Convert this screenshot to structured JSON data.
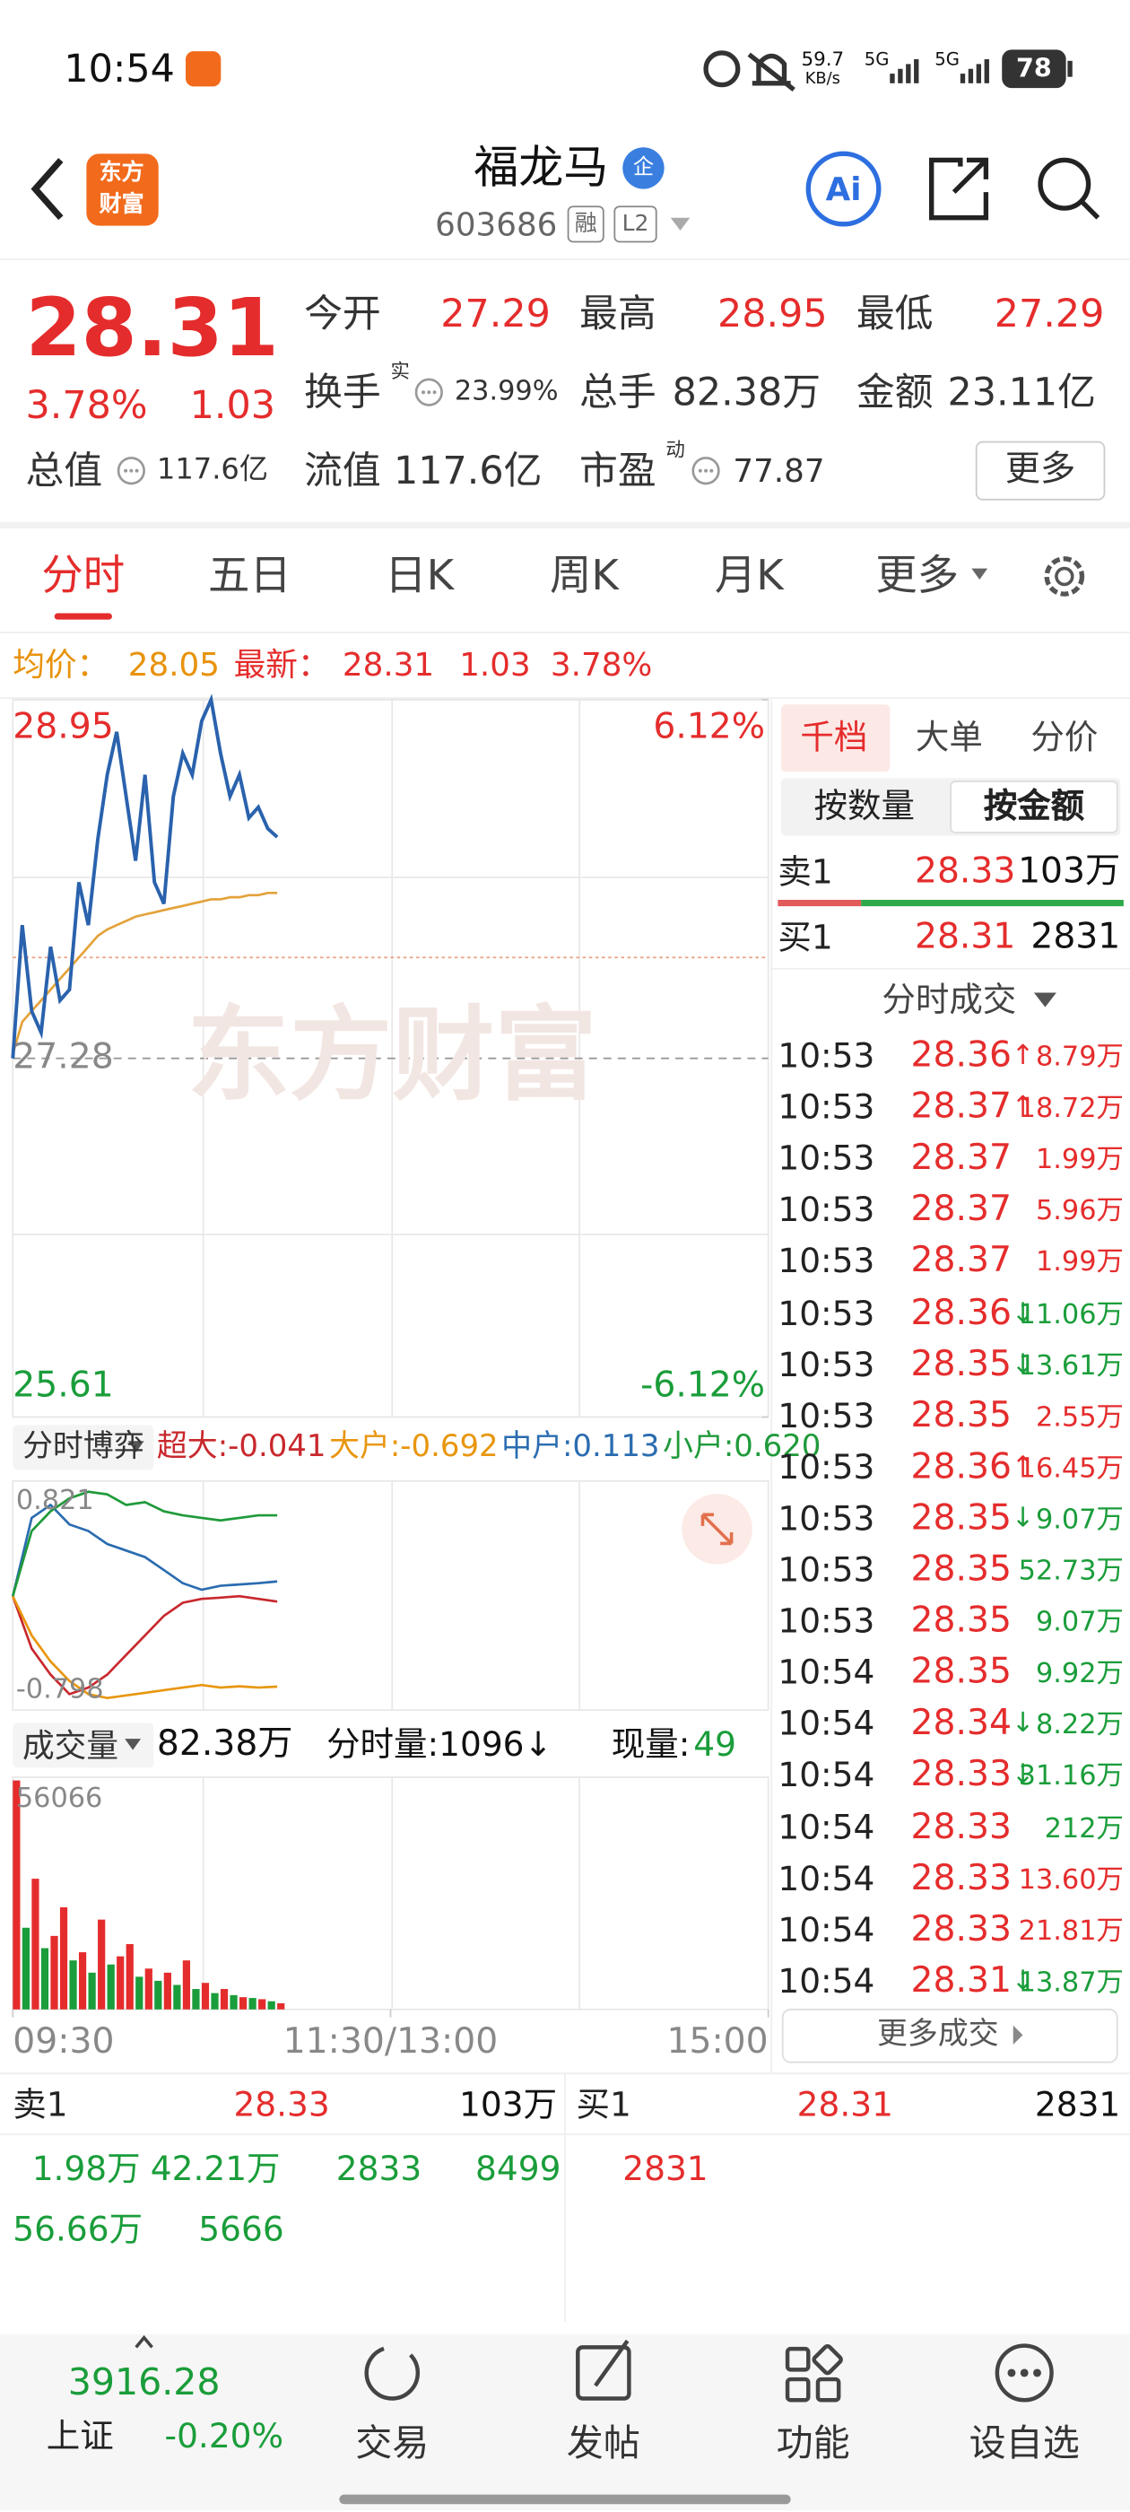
{
  "status_bar": {
    "time": "10:54",
    "speed": "59.7",
    "speed_unit": "KB/s",
    "signal_1": "5G",
    "signal_2": "5G",
    "battery": "78"
  },
  "header": {
    "logo_line_1": "东方",
    "logo_line_2": "财富",
    "name": "福龙马",
    "badge": "企",
    "code": "603686",
    "tag_1": "融",
    "tag_2": "L2",
    "ai_button": "Ai"
  },
  "quote": {
    "price": "28.31",
    "change_pct": "3.78%",
    "change": "1.03",
    "stats": [
      {
        "label": "今开",
        "value": "27.29"
      },
      {
        "label": "最高",
        "value": "28.95"
      },
      {
        "label": "最低",
        "value": "27.29"
      },
      {
        "label": "换手",
        "mark": "实",
        "value": "23.99%"
      },
      {
        "label": "总手",
        "value": "82.38万"
      },
      {
        "label": "金额",
        "value": "23.11亿"
      },
      {
        "label": "总值",
        "value": "117.6亿"
      },
      {
        "label": "流值",
        "value": "117.6亿"
      },
      {
        "label": "市盈",
        "mark": "动",
        "value": "77.87"
      }
    ],
    "more_button": "更多"
  },
  "tabs": [
    "分时",
    "五日",
    "日K",
    "周K",
    "月K",
    "更多"
  ],
  "intraday": {
    "avg_label": "均价：",
    "avg": "28.05",
    "latest_label": "最新：",
    "latest": "28.31",
    "change": "1.03",
    "change_pct": "3.78%"
  },
  "price_chart": {
    "type": "line",
    "watermark": "东方财富",
    "xlim": [
      0,
      240
    ],
    "ylim": [
      25.61,
      28.95
    ],
    "yticks": [
      25.61,
      27.28,
      28.95
    ],
    "y2lim": [
      -6.12,
      6.12
    ],
    "y2ticks": [
      {
        "value": -6.12,
        "label": "-6.12%"
      },
      {
        "value": 6.12,
        "label": "6.12%"
      }
    ],
    "xticks": [
      {
        "value": 0,
        "label": "09:30"
      },
      {
        "value": 120,
        "label": "11:30/13:00"
      },
      {
        "value": 240,
        "label": "15:00"
      }
    ],
    "x": [
      0,
      3,
      6,
      9,
      12,
      15,
      18,
      21,
      24,
      27,
      30,
      33,
      36,
      39,
      42,
      45,
      48,
      51,
      54,
      57,
      60,
      63,
      66,
      69,
      72,
      75,
      78,
      81,
      84
    ],
    "series": [
      {
        "color": "#2a62ad",
        "values": [
          27.28,
          27.9,
          27.5,
          27.4,
          27.8,
          27.55,
          27.6,
          28.1,
          27.9,
          28.3,
          28.6,
          28.8,
          28.5,
          28.2,
          28.6,
          28.1,
          28.0,
          28.5,
          28.7,
          28.6,
          28.85,
          28.95,
          28.7,
          28.5,
          28.6,
          28.4,
          28.45,
          28.35,
          28.31
        ]
      },
      {
        "color": "#e3a23a",
        "values": [
          27.3,
          27.45,
          27.5,
          27.55,
          27.6,
          27.65,
          27.7,
          27.75,
          27.8,
          27.85,
          27.88,
          27.9,
          27.92,
          27.94,
          27.95,
          27.96,
          27.97,
          27.98,
          27.99,
          28.0,
          28.01,
          28.02,
          28.02,
          28.03,
          28.03,
          28.04,
          28.04,
          28.05,
          28.05
        ]
      }
    ]
  },
  "flow_chart": {
    "type": "line",
    "title": "分时博弈",
    "ylim": [
      -0.798,
      0.821
    ],
    "xlim": [
      0,
      240
    ],
    "x": [
      0,
      6,
      12,
      18,
      24,
      30,
      36,
      42,
      48,
      54,
      60,
      66,
      72,
      78,
      84
    ],
    "series": [
      {
        "label": "超大:-0.041",
        "color": "#c8282d",
        "values": [
          0,
          -0.4,
          -0.6,
          -0.75,
          -0.7,
          -0.6,
          -0.45,
          -0.3,
          -0.15,
          -0.05,
          -0.02,
          -0.01,
          0,
          -0.02,
          -0.041
        ]
      },
      {
        "label": "大户:-0.692",
        "color": "#e8960e",
        "values": [
          0,
          -0.3,
          -0.5,
          -0.65,
          -0.75,
          -0.78,
          -0.76,
          -0.74,
          -0.72,
          -0.7,
          -0.68,
          -0.7,
          -0.69,
          -0.7,
          -0.692
        ]
      },
      {
        "label": "中户:0.113",
        "color": "#2a6cb0",
        "values": [
          0,
          0.6,
          0.7,
          0.55,
          0.5,
          0.4,
          0.35,
          0.3,
          0.2,
          0.1,
          0.05,
          0.08,
          0.09,
          0.1,
          0.113
        ]
      },
      {
        "label": "小户:0.620",
        "color": "#1f9a3a",
        "values": [
          0,
          0.5,
          0.65,
          0.75,
          0.8,
          0.78,
          0.7,
          0.72,
          0.65,
          0.62,
          0.6,
          0.58,
          0.6,
          0.62,
          0.62
        ]
      }
    ]
  },
  "volume_chart": {
    "type": "bar",
    "title": "成交量",
    "total": "82.38万",
    "minute_volume": "分时量:1096↓",
    "current_label": "现量:",
    "current": "49",
    "ylim": [
      0,
      56066
    ],
    "xlim": [
      0,
      240
    ],
    "x": [
      0,
      3,
      6,
      9,
      12,
      15,
      18,
      21,
      24,
      27,
      30,
      33,
      36,
      39,
      42,
      45,
      48,
      51,
      54,
      57,
      60,
      63,
      66,
      69,
      72,
      75,
      78,
      81,
      84
    ],
    "values": [
      56066,
      20000,
      32000,
      15000,
      18000,
      25000,
      12000,
      14000,
      9000,
      22000,
      11000,
      13000,
      16000,
      8000,
      10000,
      7000,
      9000,
      6000,
      12000,
      5000,
      6500,
      4000,
      5000,
      3500,
      3000,
      2800,
      2500,
      2000,
      1500
    ],
    "colors": [
      "#e52c2c",
      "#1a9d3a",
      "#e52c2c",
      "#1a9d3a",
      "#e52c2c",
      "#e52c2c",
      "#1a9d3a",
      "#e52c2c",
      "#1a9d3a",
      "#e52c2c",
      "#1a9d3a",
      "#e52c2c",
      "#e52c2c",
      "#1a9d3a",
      "#e52c2c",
      "#1a9d3a",
      "#e52c2c",
      "#1a9d3a",
      "#e52c2c",
      "#1a9d3a",
      "#e52c2c",
      "#1a9d3a",
      "#e52c2c",
      "#1a9d3a",
      "#e52c2c",
      "#1a9d3a",
      "#e52c2c",
      "#1a9d3a",
      "#e52c2c"
    ]
  },
  "right_panel": {
    "tabs": [
      "千档",
      "大单",
      "分价"
    ],
    "modes": [
      "按数量",
      "按金额"
    ],
    "ask": {
      "label": "卖1",
      "price": "28.33",
      "volume": "103万"
    },
    "bid": {
      "label": "买1",
      "price": "28.31",
      "volume": "2831"
    },
    "trades_title": "分时成交",
    "trades": [
      {
        "time": "10:53",
        "price": "28.36",
        "arrow": "↑",
        "volume": "8.79万",
        "color": "#e52c2c"
      },
      {
        "time": "10:53",
        "price": "28.37",
        "arrow": "↑",
        "volume": "18.72万",
        "color": "#e52c2c"
      },
      {
        "time": "10:53",
        "price": "28.37",
        "volume": "1.99万",
        "color": "#e52c2c"
      },
      {
        "time": "10:53",
        "price": "28.37",
        "volume": "5.96万",
        "color": "#e52c2c"
      },
      {
        "time": "10:53",
        "price": "28.37",
        "volume": "1.99万",
        "color": "#e52c2c"
      },
      {
        "time": "10:53",
        "price": "28.36",
        "arrow": "↓",
        "volume": "11.06万",
        "color": "#1a9d3a"
      },
      {
        "time": "10:53",
        "price": "28.35",
        "arrow": "↓",
        "volume": "13.61万",
        "color": "#1a9d3a"
      },
      {
        "time": "10:53",
        "price": "28.35",
        "volume": "2.55万",
        "color": "#e52c2c"
      },
      {
        "time": "10:53",
        "price": "28.36",
        "arrow": "↑",
        "volume": "16.45万",
        "color": "#e52c2c"
      },
      {
        "time": "10:53",
        "price": "28.35",
        "arrow": "↓",
        "volume": "9.07万",
        "color": "#1a9d3a"
      },
      {
        "time": "10:53",
        "price": "28.35",
        "volume": "52.73万",
        "color": "#1a9d3a"
      },
      {
        "time": "10:53",
        "price": "28.35",
        "volume": "9.07万",
        "color": "#1a9d3a"
      },
      {
        "time": "10:54",
        "price": "28.35",
        "volume": "9.92万",
        "color": "#1a9d3a"
      },
      {
        "time": "10:54",
        "price": "28.34",
        "arrow": "↓",
        "volume": "8.22万",
        "color": "#1a9d3a"
      },
      {
        "time": "10:54",
        "price": "28.33",
        "arrow": "↓",
        "volume": "31.16万",
        "color": "#1a9d3a"
      },
      {
        "time": "10:54",
        "price": "28.33",
        "volume": "212万",
        "color": "#1a9d3a"
      },
      {
        "time": "10:54",
        "price": "28.33",
        "volume": "13.60万",
        "color": "#e52c2c"
      },
      {
        "time": "10:54",
        "price": "28.33",
        "volume": "21.81万",
        "color": "#e52c2c"
      },
      {
        "time": "10:54",
        "price": "28.31",
        "arrow": "↓",
        "volume": "13.87万",
        "color": "#1a9d3a"
      }
    ],
    "more_trades": "更多成交"
  },
  "order_book": {
    "ask": {
      "label": "卖1",
      "price": "28.33",
      "volume": "103万",
      "queue": [
        "1.98万",
        "42.21万",
        "2833",
        "8499",
        "56.66万",
        "5666"
      ]
    },
    "bid": {
      "label": "买1",
      "price": "28.31",
      "volume": "2831",
      "queue": [
        "2831"
      ]
    }
  },
  "bottom_nav": {
    "index_value": "3916.28",
    "index_name": "上证",
    "index_change": "-0.20%",
    "items": [
      "交易",
      "发帖",
      "功能",
      "设自选"
    ]
  }
}
